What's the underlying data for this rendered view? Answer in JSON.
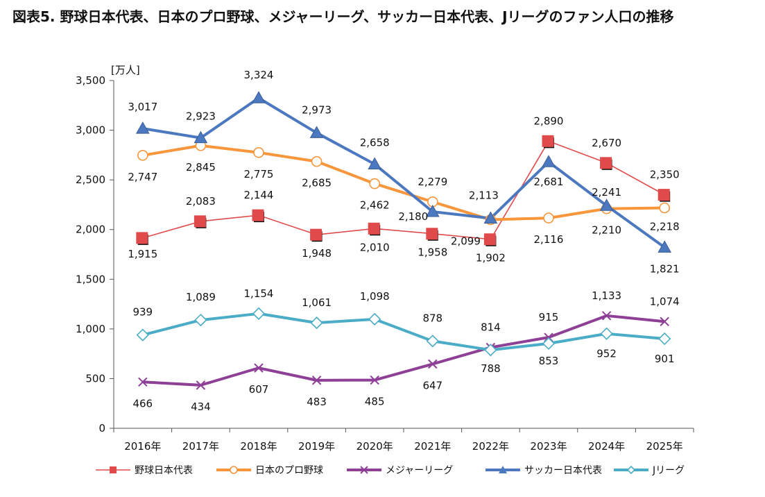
{
  "title": "図表5. 野球日本代表、日本のプロ野球、メジャーリーグ、サッカー日本代表、Jリーグのファン人口の推移",
  "chart_data": {
    "type": "line",
    "ylabel": "[万人]",
    "ylim": [
      0,
      3500
    ],
    "yticks": [
      "0",
      "500",
      "1,000",
      "1,500",
      "2,000",
      "2,500",
      "3,000",
      "3,500"
    ],
    "ytick_values": [
      0,
      500,
      1000,
      1500,
      2000,
      2500,
      3000,
      3500
    ],
    "categories": [
      "2016年",
      "2017年",
      "2018年",
      "2019年",
      "2020年",
      "2021年",
      "2022年",
      "2023年",
      "2024年",
      "2025年"
    ],
    "legend_position": "bottom",
    "grid": false,
    "series": [
      {
        "name": "野球日本代表",
        "color": "#e04a4a",
        "marker": "square",
        "values": [
          1915,
          2083,
          2144,
          1948,
          2010,
          1958,
          1902,
          2890,
          2670,
          2350
        ],
        "labels": [
          "1,915",
          "2,083",
          "2,144",
          "1,948",
          "2,010",
          "1,958",
          "1,902",
          "2,890",
          "2,670",
          "2,350"
        ]
      },
      {
        "name": "日本のプロ野球",
        "color": "#f7963b",
        "marker": "circle-open",
        "values": [
          2747,
          2845,
          2775,
          2685,
          2462,
          2279,
          2099,
          2116,
          2210,
          2218
        ],
        "labels": [
          "2,747",
          "2,845",
          "2,775",
          "2,685",
          "2,462",
          "2,279",
          "2,099",
          "2,116",
          "2,210",
          "2,218"
        ]
      },
      {
        "name": "メジャーリーグ",
        "color": "#8e3f96",
        "marker": "x",
        "values": [
          466,
          434,
          607,
          483,
          485,
          647,
          814,
          915,
          1133,
          1074
        ],
        "labels": [
          "466",
          "434",
          "607",
          "483",
          "485",
          "647",
          "814",
          "915",
          "1,133",
          "1,074"
        ]
      },
      {
        "name": "サッカー日本代表",
        "color": "#4b78be",
        "marker": "triangle",
        "values": [
          3017,
          2923,
          3324,
          2973,
          2658,
          2180,
          2113,
          2681,
          2241,
          1821
        ],
        "labels": [
          "3,017",
          "2,923",
          "3,324",
          "2,973",
          "2,658",
          "2,180",
          "2,113",
          "2,681",
          "2,241",
          "1,821"
        ]
      },
      {
        "name": "Jリーグ",
        "color": "#4aacc6",
        "marker": "diamond-open",
        "values": [
          939,
          1089,
          1154,
          1061,
          1098,
          878,
          788,
          853,
          952,
          901
        ],
        "labels": [
          "939",
          "1,089",
          "1,154",
          "1,061",
          "1,098",
          "878",
          "788",
          "853",
          "952",
          "901"
        ]
      }
    ]
  }
}
